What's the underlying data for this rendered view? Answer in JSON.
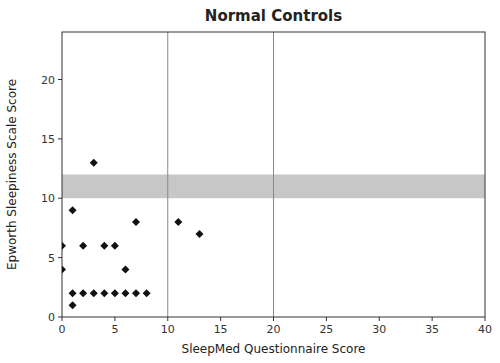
{
  "chart_data": {
    "type": "scatter",
    "title": "Normal Controls",
    "xlabel": "SleepMed Questionnaire Score",
    "ylabel": "Epworth Sleepiness Scale Score",
    "x": [
      0,
      0,
      1,
      1,
      1,
      2,
      2,
      3,
      3,
      4,
      4,
      5,
      5,
      6,
      6,
      7,
      7,
      8,
      11,
      13
    ],
    "values": [
      6,
      4,
      9,
      2,
      1,
      2,
      6,
      13,
      2,
      6,
      2,
      6,
      2,
      4,
      2,
      8,
      2,
      2,
      8,
      7
    ],
    "color": "#111111",
    "marker": "diamond",
    "xlim": [
      0,
      40
    ],
    "ylim": [
      0,
      24
    ],
    "xticks": [
      0,
      5,
      10,
      15,
      20,
      25,
      30,
      35,
      40
    ],
    "yticks": [
      0,
      5,
      10,
      15,
      20
    ],
    "vlines": [
      10,
      20
    ],
    "hband": [
      10,
      12
    ],
    "grid": false
  }
}
